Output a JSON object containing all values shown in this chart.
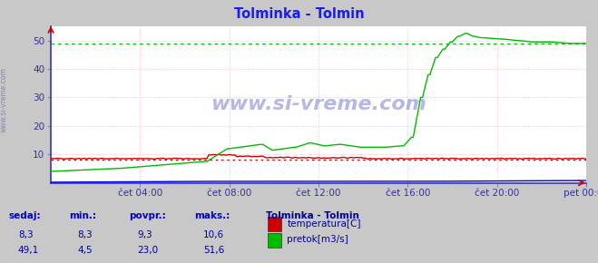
{
  "title": "Tolminka - Tolmin",
  "title_color": "#1a1aff",
  "bg_color": "#c8c8c8",
  "plot_bg_color": "#ffffff",
  "grid_color": "#ffaaaa",
  "spine_color": "#3333cc",
  "xlabel_color": "#333399",
  "ylabel_color": "#333399",
  "watermark": "www.si-vreme.com",
  "watermark_color": "#3333bb",
  "ylim_min": 0,
  "ylim_max": 55,
  "yticks": [
    10,
    20,
    30,
    40,
    50
  ],
  "x_end": 288,
  "xtick_labels": [
    "čet 04:00",
    "čet 08:00",
    "čet 12:00",
    "čet 16:00",
    "čet 20:00",
    "pet 00:00"
  ],
  "xtick_positions": [
    48,
    96,
    144,
    192,
    240,
    288
  ],
  "temp_color": "#cc0000",
  "flow_color": "#00bb00",
  "height_color": "#0000cc",
  "temp_ref_line": 8.3,
  "flow_ref_line": 49.0,
  "legend_title": "Tolminka - Tolmin",
  "legend_items": [
    {
      "label": "temperatura[C]",
      "color": "#cc0000"
    },
    {
      "label": "pretok[m3/s]",
      "color": "#00bb00"
    }
  ],
  "table_headers": [
    "sedaj:",
    "min.:",
    "povpr.:",
    "maks.:"
  ],
  "table_data": [
    [
      "8,3",
      "8,3",
      "9,3",
      "10,6"
    ],
    [
      "49,1",
      "4,5",
      "23,0",
      "51,6"
    ]
  ]
}
